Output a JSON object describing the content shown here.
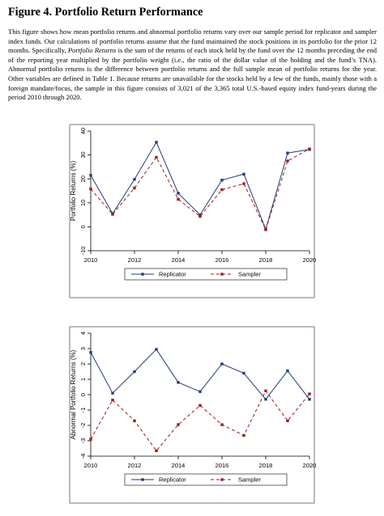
{
  "figure": {
    "title": "Figure 4. Portfolio Return Performance",
    "caption": {
      "p1": "This figure shows how mean portfolio returns and abnormal portfolio returns vary over our sample period for replicator and sampler index funds. Our calculations of portfolio returns assume that the fund maintained the stock positions in its portfolio for the prior 12 months. Specifically, ",
      "em": "Portfolio Returns",
      "p2": " is the sum of the returns of each stock held by the fund over the 12 months preceding the end of the reporting year multiplied by the portfolio weight (i.e., the ratio of the dollar value of the holding and the fund’s TNA). Abnormal portfolio returns is the difference between portfolio returns and the full sample mean of portfolio returns for the year. Other variables are defined in Table 1. Because returns are unavailable for the stocks held by a few of the funds, mainly those with a foreign mandate/focus, the sample in this figure consists of 3,021 of the 3,365 total U.S.-based equity index fund-years during the period 2010 through 2020."
    }
  },
  "chart_data": [
    {
      "type": "line",
      "ylabel": "Portfolio Returns (%)",
      "xlabel": "",
      "x": [
        2010,
        2011,
        2012,
        2013,
        2014,
        2015,
        2016,
        2017,
        2018,
        2019,
        2020
      ],
      "xticks": [
        "2010",
        "2012",
        "2014",
        "2016",
        "2018",
        "2020"
      ],
      "ylim": [
        -10,
        40
      ],
      "yticks": [
        "-10",
        "0",
        "10",
        "20",
        "30",
        "40"
      ],
      "legend_position": "bottom",
      "series": [
        {
          "name": "Replicator",
          "color": "#1f3d7a",
          "style": "solid",
          "marker": "square",
          "values": [
            21.5,
            5.5,
            19.8,
            35.3,
            14.0,
            5.0,
            19.5,
            22.0,
            -1.0,
            30.8,
            32.3
          ]
        },
        {
          "name": "Sampler",
          "color": "#9c1c1c",
          "style": "dashed",
          "marker": "square",
          "values": [
            15.8,
            5.2,
            16.2,
            29.0,
            11.5,
            4.3,
            15.5,
            18.0,
            -1.2,
            27.5,
            32.5
          ]
        }
      ]
    },
    {
      "type": "line",
      "ylabel": "Abnormal Portfolio Returns (%)",
      "xlabel": "",
      "x": [
        2010,
        2011,
        2012,
        2013,
        2014,
        2015,
        2016,
        2017,
        2018,
        2019,
        2020
      ],
      "xticks": [
        "2010",
        "2012",
        "2014",
        "2016",
        "2018",
        "2020"
      ],
      "ylim": [
        -4,
        4
      ],
      "yticks": [
        "-4",
        "-3",
        "-2",
        "-1",
        "0",
        "1",
        "2",
        "3",
        "4"
      ],
      "legend_position": "bottom",
      "series": [
        {
          "name": "Replicator",
          "color": "#1f3d7a",
          "style": "solid",
          "marker": "square",
          "values": [
            2.75,
            0.1,
            1.5,
            2.95,
            0.8,
            0.2,
            2.0,
            1.4,
            -0.3,
            1.55,
            -0.3
          ]
        },
        {
          "name": "Sampler",
          "color": "#9c1c1c",
          "style": "dashed",
          "marker": "square",
          "values": [
            -2.9,
            -0.35,
            -1.7,
            -3.65,
            -1.95,
            -0.7,
            -1.95,
            -2.65,
            0.25,
            -1.7,
            0.05
          ]
        }
      ]
    }
  ]
}
